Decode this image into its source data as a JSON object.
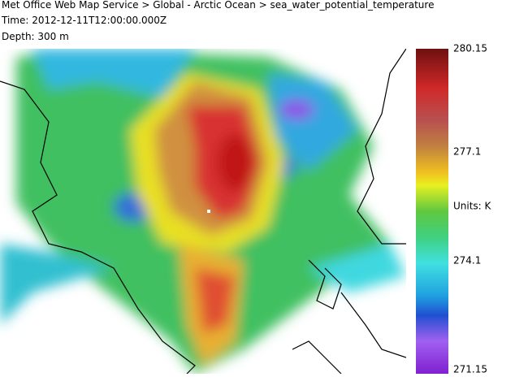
{
  "header": {
    "title": "Met Office Web Map Service > Global - Arctic Ocean > sea_water_potential_temperature",
    "time": "Time: 2012-12-11T12:00:00.000Z",
    "depth": "Depth: 300 m"
  },
  "legend": {
    "max": "280.15",
    "upper": "277.1",
    "units": "Units: K",
    "lower": "274.1",
    "min": "271.15"
  }
}
